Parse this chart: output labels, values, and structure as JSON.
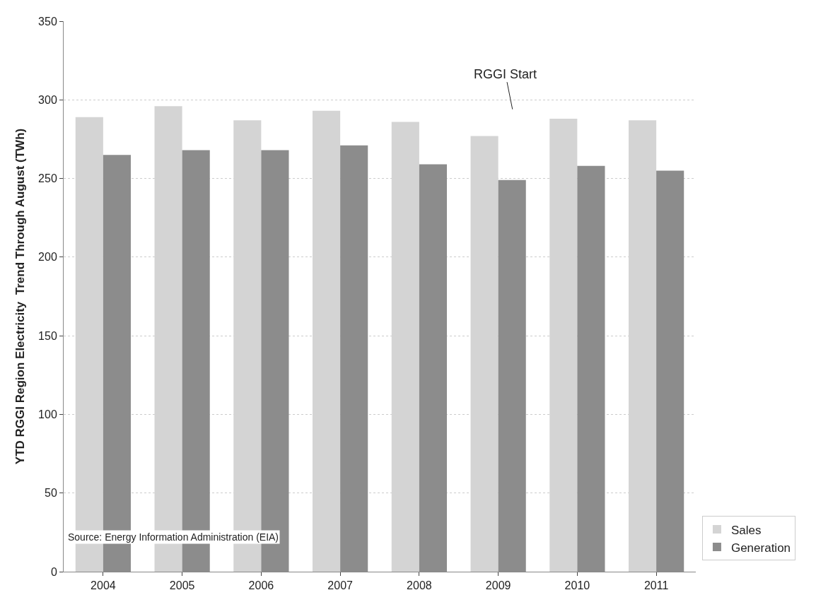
{
  "chart_data": {
    "type": "bar",
    "ylabel": "YTD RGGI Region Electricity  Trend Through August (TWh)",
    "categories": [
      "2004",
      "2005",
      "2006",
      "2007",
      "2008",
      "2009",
      "2010",
      "2011"
    ],
    "series": [
      {
        "name": "Sales",
        "color": "#d4d4d4",
        "values": [
          289,
          296,
          287,
          293,
          286,
          277,
          288,
          287
        ]
      },
      {
        "name": "Generation",
        "color": "#8c8c8c",
        "values": [
          265,
          268,
          268,
          271,
          259,
          249,
          258,
          255
        ]
      }
    ],
    "ylim": [
      0,
      350
    ],
    "yticks": [
      0,
      50,
      100,
      150,
      200,
      250,
      300,
      350
    ],
    "grid": "y",
    "legend": "bottom right",
    "annotations": [
      "RGGI Start",
      "Source: Energy Information Administration (EIA)"
    ]
  }
}
